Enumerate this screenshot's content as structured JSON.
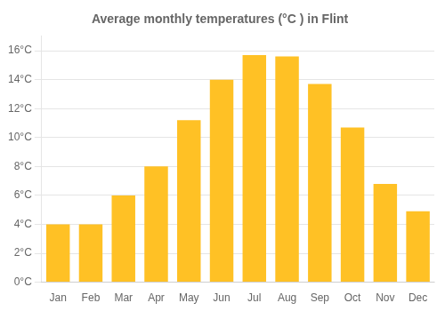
{
  "chart_data": {
    "type": "bar",
    "title": "Average monthly temperatures (°C ) in Flint",
    "categories": [
      "Jan",
      "Feb",
      "Mar",
      "Apr",
      "May",
      "Jun",
      "Jul",
      "Aug",
      "Sep",
      "Oct",
      "Nov",
      "Dec"
    ],
    "values": [
      4.0,
      4.0,
      6.0,
      8.0,
      11.2,
      14.0,
      15.7,
      15.6,
      13.7,
      10.7,
      6.8,
      4.9
    ],
    "color": "#FFC125",
    "ylim": [
      0,
      17
    ],
    "yticks": [
      {
        "value": 0,
        "label": "0°C"
      },
      {
        "value": 2,
        "label": "2°C"
      },
      {
        "value": 4,
        "label": "4°C"
      },
      {
        "value": 6,
        "label": "6°C"
      },
      {
        "value": 8,
        "label": "8°C"
      },
      {
        "value": 10,
        "label": "10°C"
      },
      {
        "value": 12,
        "label": "12°C"
      },
      {
        "value": 14,
        "label": "14°C"
      },
      {
        "value": 16,
        "label": "16°C"
      }
    ],
    "grid": true
  }
}
